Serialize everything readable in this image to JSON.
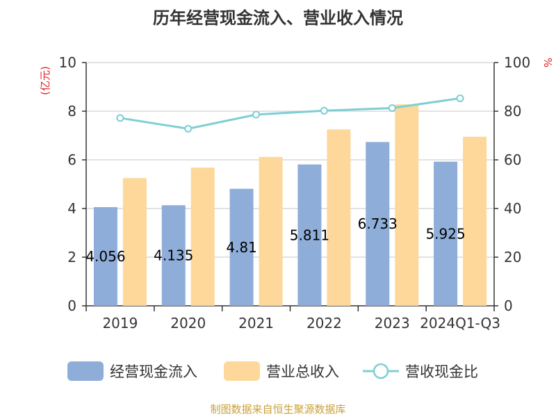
{
  "title": "历年经营现金流入、营业收入情况",
  "source": "制图数据来自恒生聚源数据库",
  "colors": {
    "cash_inflow": "#8eadd9",
    "revenue": "#fdd89a",
    "ratio_line": "#7ecfd3",
    "unit_text": "#e02020"
  },
  "chart_data": {
    "type": "bar",
    "title": "历年经营现金流入、营业收入情况",
    "categories": [
      "2019",
      "2020",
      "2021",
      "2022",
      "2023",
      "2024Q1-Q3"
    ],
    "y_left_unit": "(亿元)",
    "y_right_unit": "%",
    "ylim_left": [
      0,
      10
    ],
    "ylim_right": [
      0,
      100
    ],
    "yticks_left": [
      "0",
      "2",
      "4",
      "6",
      "8",
      "10"
    ],
    "yticks_right": [
      "0",
      "20",
      "40",
      "60",
      "80",
      "100"
    ],
    "grid": true,
    "legend_position": "bottom",
    "series": [
      {
        "name": "经营现金流入",
        "type": "bar",
        "axis": "left",
        "values": [
          4.056,
          4.135,
          4.81,
          5.811,
          6.733,
          5.925
        ],
        "labels": [
          "4.056",
          "4.135",
          "4.81",
          "5.811",
          "6.733",
          "5.925"
        ]
      },
      {
        "name": "营业总收入",
        "type": "bar",
        "axis": "left",
        "values": [
          5.25,
          5.68,
          6.12,
          7.25,
          8.28,
          6.95
        ]
      },
      {
        "name": "营收现金比",
        "type": "line",
        "axis": "right",
        "values": [
          77.2,
          72.8,
          78.6,
          80.2,
          81.3,
          85.3
        ]
      }
    ]
  }
}
